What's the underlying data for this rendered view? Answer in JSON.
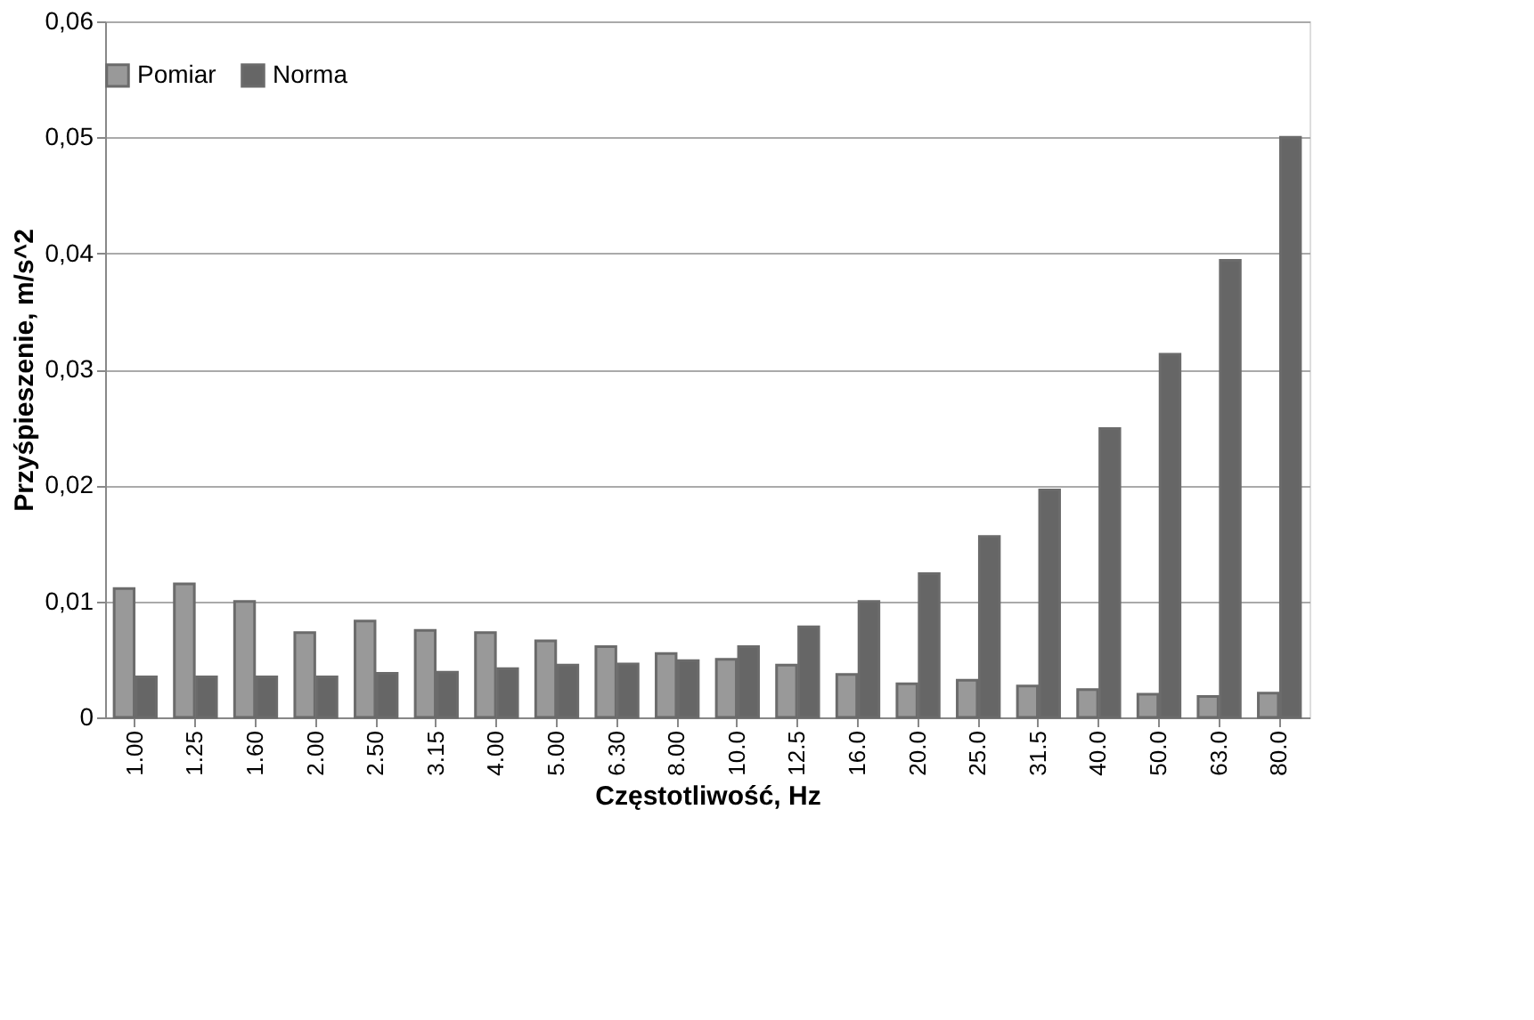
{
  "chart_data": {
    "type": "bar",
    "xlabel": "Częstotliwość, Hz",
    "ylabel": "Przyśpieszenie, m/s^2",
    "categories": [
      "1.00",
      "1.25",
      "1.60",
      "2.00",
      "2.50",
      "3.15",
      "4.00",
      "5.00",
      "6.30",
      "8.00",
      "10.0",
      "12.5",
      "16.0",
      "20.0",
      "25.0",
      "31.5",
      "40.0",
      "50.0",
      "63.0",
      "80.0"
    ],
    "series": [
      {
        "name": "Pomiar",
        "color": "#999999",
        "values": [
          0.0111,
          0.0115,
          0.01,
          0.0073,
          0.0083,
          0.0075,
          0.0073,
          0.0066,
          0.0061,
          0.0055,
          0.005,
          0.0045,
          0.0037,
          0.0029,
          0.0032,
          0.0027,
          0.0024,
          0.002,
          0.0018,
          0.0021
        ]
      },
      {
        "name": "Norma",
        "color": "#666666",
        "values": [
          0.0035,
          0.0035,
          0.0035,
          0.0035,
          0.0038,
          0.0039,
          0.0042,
          0.0045,
          0.0046,
          0.0049,
          0.0061,
          0.0078,
          0.01,
          0.0124,
          0.0156,
          0.0196,
          0.0249,
          0.0313,
          0.0394,
          0.05
        ]
      }
    ],
    "ylim": [
      0,
      0.06
    ],
    "yticks": [
      {
        "value": 0,
        "label": "0"
      },
      {
        "value": 0.01,
        "label": "0,01"
      },
      {
        "value": 0.02,
        "label": "0,02"
      },
      {
        "value": 0.03,
        "label": "0,03"
      },
      {
        "value": 0.04,
        "label": "0,04"
      },
      {
        "value": 0.05,
        "label": "0,05"
      },
      {
        "value": 0.06,
        "label": "0,06"
      }
    ],
    "grid": "y",
    "legend": "top"
  }
}
